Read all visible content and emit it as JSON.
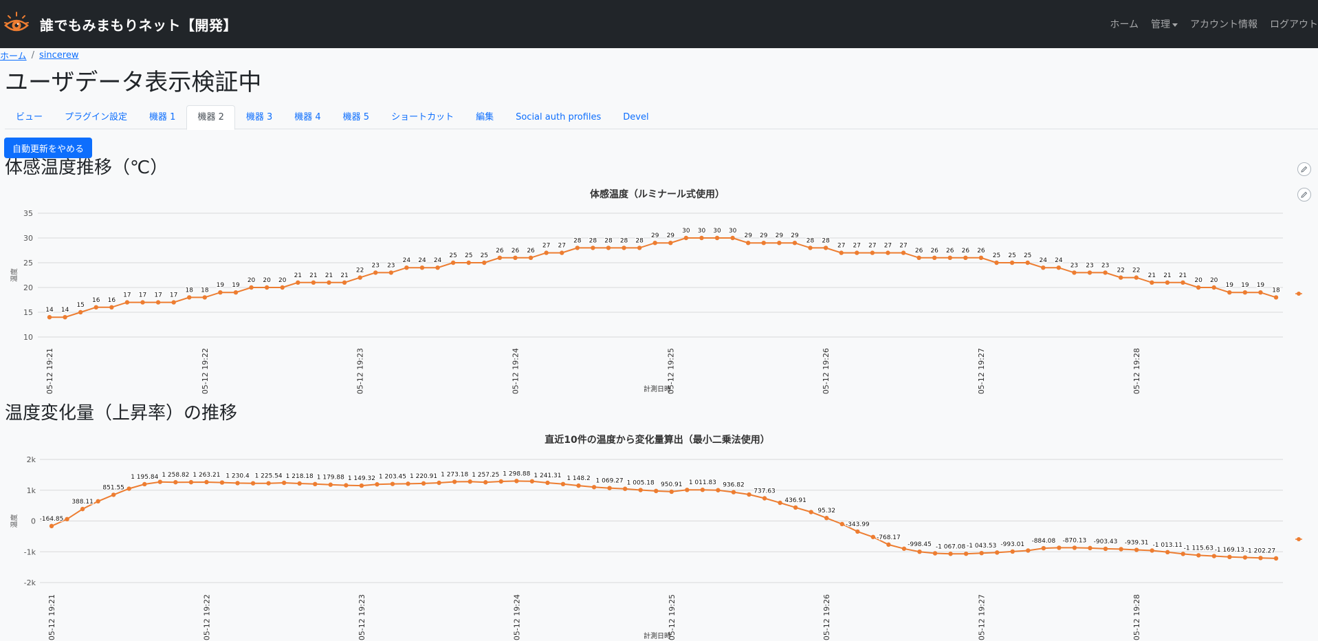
{
  "app": {
    "title": "誰でもみまもりネット【開発】",
    "logo_icon": "eye-sun-icon",
    "nav": {
      "home": "ホーム",
      "admin": "管理",
      "account": "アカウント情報",
      "logout": "ログアウト"
    }
  },
  "breadcrumb": {
    "home": "ホーム",
    "separator": "/",
    "current": "sincerew"
  },
  "page": {
    "title": "ユーザデータ表示検証中",
    "tabs": [
      "ビュー",
      "プラグイン設定",
      "機器 1",
      "機器 2",
      "機器 3",
      "機器 4",
      "機器 5",
      "ショートカット",
      "編集",
      "Social auth profiles",
      "Devel"
    ],
    "active_tab": 3,
    "stop_refresh_label": "自動更新をやめる"
  },
  "colors": {
    "series": "#ed7d31",
    "navbar": "#212529",
    "primary": "#0d6efd"
  },
  "section1": {
    "title": "体感温度推移（℃）"
  },
  "section2": {
    "title": "温度変化量（上昇率）の推移"
  },
  "chart_data": [
    {
      "type": "line",
      "title": "体感温度（ルミナール式使用）",
      "xlabel": "計測日時",
      "ylabel": "温度",
      "ylim": [
        10,
        35
      ],
      "yticks": [
        35,
        30,
        25,
        20,
        15,
        10
      ],
      "grid": true,
      "xtick_labels": [
        "05-12 19:21",
        "05-12 19:22",
        "05-12 19:23",
        "05-12 19:24",
        "05-12 19:25",
        "05-12 19:26",
        "05-12 19:27",
        "05-12 19:28"
      ],
      "values": [
        14,
        14,
        15,
        16,
        16,
        17,
        17,
        17,
        17,
        18,
        18,
        19,
        19,
        20,
        20,
        20,
        21,
        21,
        21,
        21,
        22,
        23,
        23,
        24,
        24,
        24,
        25,
        25,
        25,
        26,
        26,
        26,
        27,
        27,
        28,
        28,
        28,
        28,
        28,
        29,
        29,
        30,
        30,
        30,
        30,
        29,
        29,
        29,
        29,
        28,
        28,
        27,
        27,
        27,
        27,
        27,
        26,
        26,
        26,
        26,
        26,
        25,
        25,
        25,
        24,
        24,
        23,
        23,
        23,
        22,
        22,
        21,
        21,
        21,
        20,
        20,
        19,
        19,
        19,
        18
      ],
      "data_labels": [
        "14",
        "14",
        "15",
        "16",
        "16",
        "17",
        "17",
        "17",
        "17",
        "18",
        "18",
        "19",
        "19",
        "20",
        "20",
        "20",
        "21",
        "21",
        "21",
        "21",
        "22",
        "23",
        "23",
        "24",
        "24",
        "24",
        "25",
        "25",
        "25",
        "26",
        "26",
        "26",
        "27",
        "27",
        "28",
        "28",
        "28",
        "28",
        "28",
        "29",
        "29",
        "30",
        "30",
        "30",
        "30",
        "29",
        "29",
        "29",
        "29",
        "28",
        "28",
        "27",
        "27",
        "27",
        "27",
        "27",
        "26",
        "26",
        "26",
        "26",
        "26",
        "25",
        "25",
        "25",
        "24",
        "24",
        "23",
        "23",
        "23",
        "22",
        "22",
        "21",
        "21",
        "21",
        "20",
        "20",
        "19",
        "19",
        "19",
        "18"
      ]
    },
    {
      "type": "line",
      "title": "直近10件の温度から変化量算出（最小二乗法使用）",
      "xlabel": "計測日時",
      "ylabel": "温度",
      "ylim": [
        -2000,
        2000
      ],
      "yticks": [
        2000,
        1000,
        0,
        -1000,
        -2000
      ],
      "ytick_labels": [
        "2k",
        "1k",
        "0",
        "-1k",
        "-2k"
      ],
      "grid": true,
      "xtick_labels": [
        "05-12 19:21",
        "05-12 19:22",
        "05-12 19:23",
        "05-12 19:24",
        "05-12 19:25",
        "05-12 19:26",
        "05-12 19:27",
        "05-12 19:28"
      ],
      "values": [
        -164.85,
        60,
        388.11,
        640,
        851.55,
        1050,
        1195.84,
        1270,
        1258.82,
        1260,
        1263.21,
        1250,
        1230.4,
        1225,
        1225.54,
        1240,
        1218.18,
        1200,
        1179.88,
        1160,
        1149.32,
        1190,
        1203.45,
        1210,
        1220.91,
        1240,
        1273.18,
        1280,
        1257.25,
        1285,
        1298.88,
        1290,
        1241.31,
        1200,
        1148.2,
        1100,
        1069.27,
        1045,
        1005.18,
        975,
        950.91,
        1010,
        1011.83,
        1000,
        936.82,
        860,
        737.63,
        590,
        436.91,
        290,
        95.32,
        -100,
        -343.99,
        -520,
        -768.17,
        -900,
        -998.45,
        -1050,
        -1067.08,
        -1065,
        -1043.53,
        -1025,
        -993.01,
        -960,
        -884.08,
        -870,
        -870.13,
        -880,
        -903.43,
        -915,
        -939.31,
        -960,
        -1013.11,
        -1070,
        -1115.63,
        -1140,
        -1169.13,
        -1185,
        -1202.27,
        -1215
      ],
      "data_labels": [
        "-164.85",
        "",
        "388.11",
        "",
        "851.55",
        "",
        "1 195.84",
        "",
        "1 258.82",
        "",
        "1 263.21",
        "",
        "1 230.4",
        "",
        "1 225.54",
        "",
        "1 218.18",
        "",
        "1 179.88",
        "",
        "1 149.32",
        "",
        "1 203.45",
        "",
        "1 220.91",
        "",
        "1 273.18",
        "",
        "1 257.25",
        "",
        "1 298.88",
        "",
        "1 241.31",
        "",
        "1 148.2",
        "",
        "1 069.27",
        "",
        "1 005.18",
        "",
        "950.91",
        "",
        "1 011.83",
        "",
        "936.82",
        "",
        "737.63",
        "",
        "436.91",
        "",
        "95.32",
        "",
        "-343.99",
        "",
        "-768.17",
        "",
        "-998.45",
        "",
        "-1 067.08",
        "",
        "-1 043.53",
        "",
        "-993.01",
        "",
        "-884.08",
        "",
        "-870.13",
        "",
        "-903.43",
        "",
        "-939.31",
        "",
        "-1 013.11",
        "",
        "-1 115.63",
        "",
        "-1 169.13",
        "",
        "-1 202.27",
        ""
      ]
    }
  ]
}
